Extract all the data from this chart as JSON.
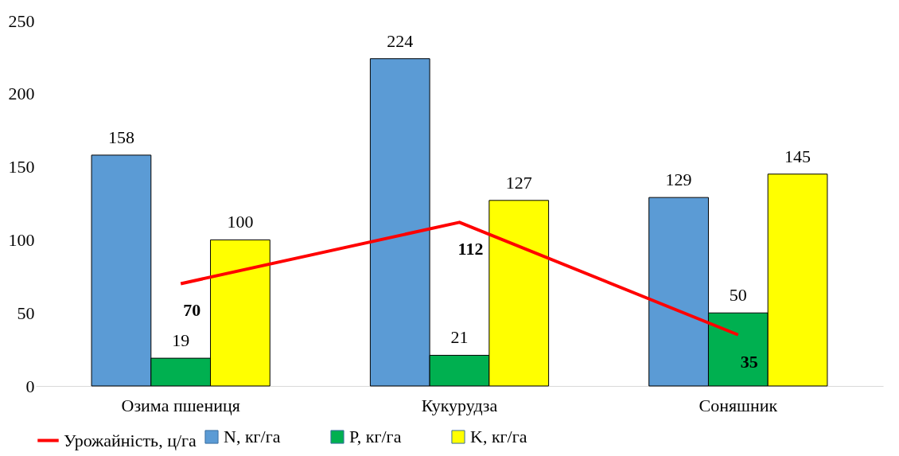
{
  "chart_data": {
    "type": "bar",
    "categories": [
      "Озима пшениця",
      "Кукурудза",
      "Соняшник"
    ],
    "series": [
      {
        "name": "N, кг/га",
        "color": "#5b9bd5",
        "values": [
          158,
          224,
          129
        ]
      },
      {
        "name": "P, кг/га",
        "color": "#00b050",
        "values": [
          19,
          21,
          50
        ]
      },
      {
        "name": "K, кг/га",
        "color": "#ffff00",
        "values": [
          100,
          127,
          145
        ]
      },
      {
        "name": "Урожайність, ц/га",
        "color": "#ff0000",
        "type": "line",
        "values": [
          70,
          112,
          35
        ]
      }
    ],
    "ylim": [
      0,
      250
    ],
    "yticks": [
      0,
      50,
      100,
      150,
      200,
      250
    ],
    "grid": false,
    "legend": "bottom",
    "data_labels": true,
    "marker": "none"
  }
}
